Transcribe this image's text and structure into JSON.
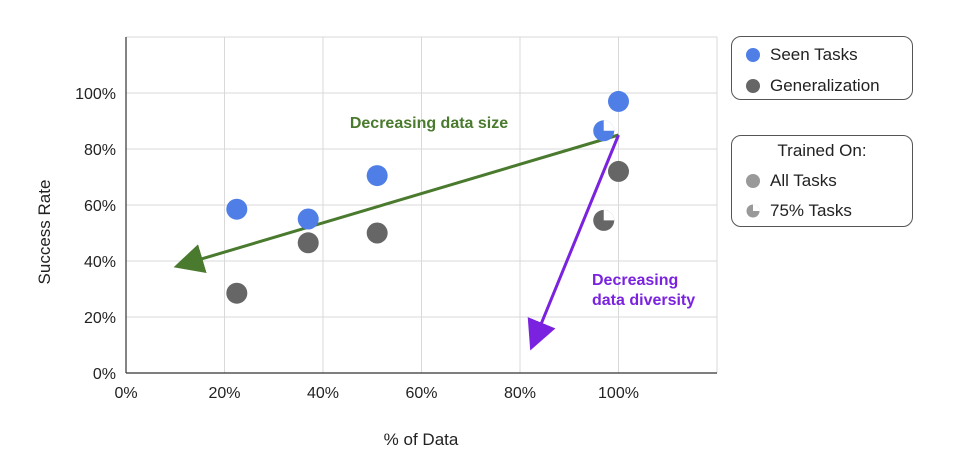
{
  "chart_data": {
    "type": "scatter",
    "xlabel": "% of Data",
    "ylabel": "Success Rate",
    "xlim": [
      0,
      120
    ],
    "ylim": [
      0,
      120
    ],
    "x_ticks": [
      "0%",
      "20%",
      "40%",
      "60%",
      "80%",
      "100%"
    ],
    "y_ticks": [
      "0%",
      "20%",
      "40%",
      "60%",
      "80%",
      "100%"
    ],
    "grid": true,
    "series": [
      {
        "name": "Seen Tasks",
        "color": "#4f7fe6",
        "points": [
          {
            "x": 22.5,
            "y": 58.5,
            "trained_on": "All Tasks"
          },
          {
            "x": 37,
            "y": 55,
            "trained_on": "All Tasks"
          },
          {
            "x": 51,
            "y": 70.5,
            "trained_on": "All Tasks"
          },
          {
            "x": 97,
            "y": 86.5,
            "trained_on": "75% Tasks"
          },
          {
            "x": 100,
            "y": 97,
            "trained_on": "All Tasks"
          }
        ]
      },
      {
        "name": "Generalization",
        "color": "#666666",
        "points": [
          {
            "x": 22.5,
            "y": 28.5,
            "trained_on": "All Tasks"
          },
          {
            "x": 37,
            "y": 46.5,
            "trained_on": "All Tasks"
          },
          {
            "x": 51,
            "y": 50,
            "trained_on": "All Tasks"
          },
          {
            "x": 97,
            "y": 54.5,
            "trained_on": "75% Tasks"
          },
          {
            "x": 100,
            "y": 72,
            "trained_on": "All Tasks"
          }
        ]
      }
    ],
    "annotations": [
      {
        "text": "Decreasing data size",
        "color": "#4a7a2e",
        "arrow_from": [
          100,
          85
        ],
        "arrow_to": [
          12,
          39
        ]
      },
      {
        "text_lines": [
          "Decreasing",
          "data diversity"
        ],
        "color": "#7a22e0",
        "arrow_from": [
          100,
          85
        ],
        "arrow_to": [
          83,
          12
        ]
      }
    ],
    "legend": {
      "placement": "right",
      "series_items": [
        "Seen Tasks",
        "Generalization"
      ],
      "trained_on_title": "Trained On:",
      "trained_on_items": [
        {
          "label": "All Tasks",
          "marker": "full"
        },
        {
          "label": "75% Tasks",
          "marker": "three-quarter"
        }
      ]
    }
  }
}
